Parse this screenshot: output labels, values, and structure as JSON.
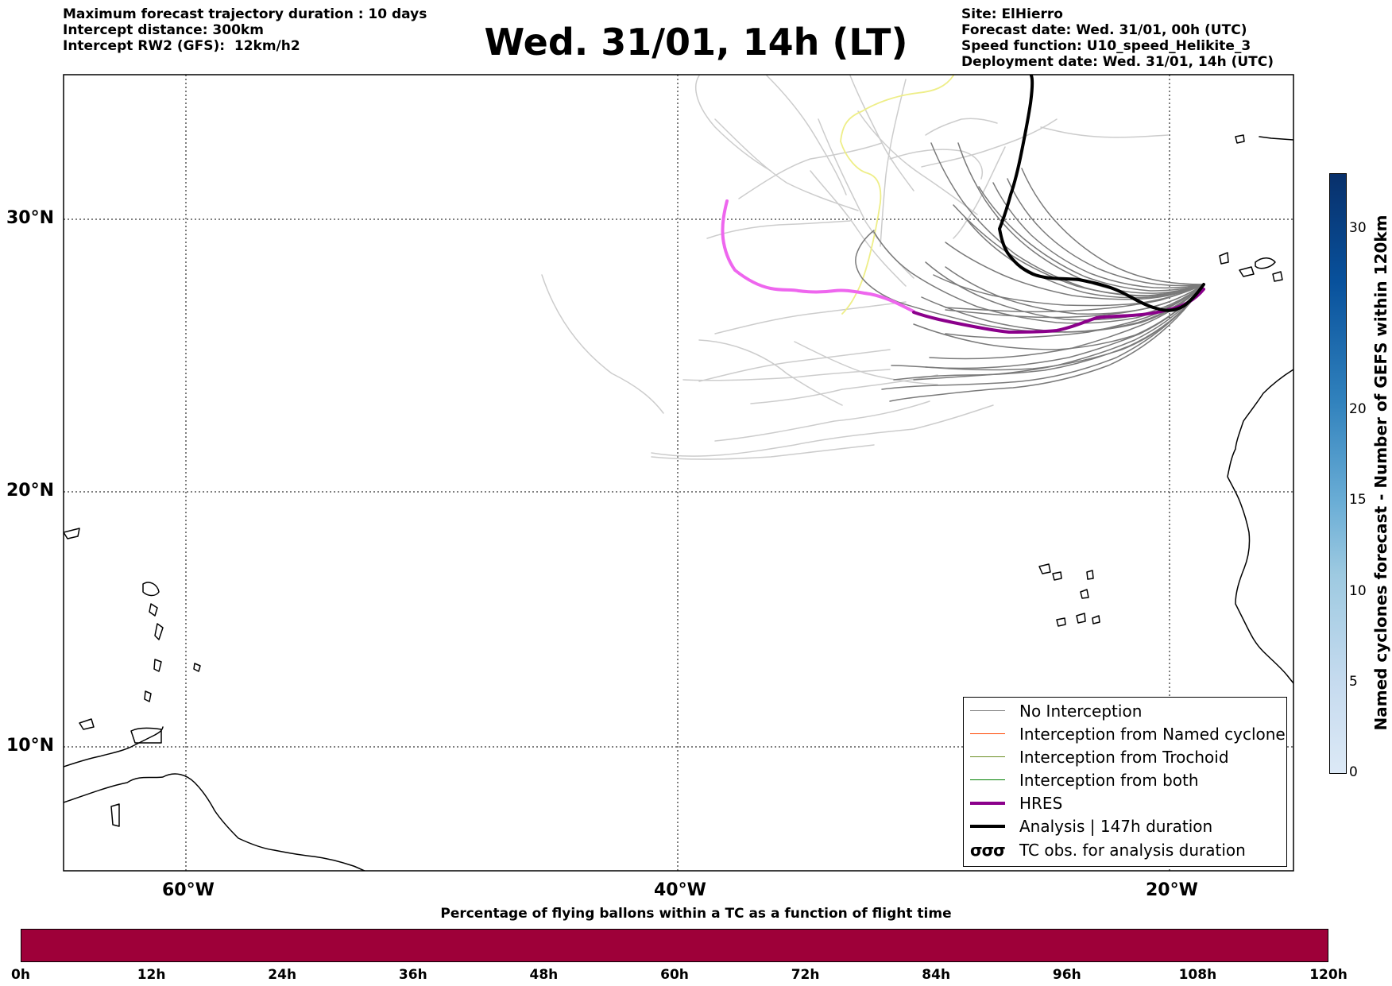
{
  "header": {
    "left": [
      "Maximum forecast trajectory duration : 10 days",
      "Intercept distance: 300km",
      "Intercept RW2 (GFS):  12km/h2"
    ],
    "title": "Wed. 31/01, 14h (LT)",
    "right": [
      "Site: ElHierro",
      "Forecast date: Wed. 31/01, 00h (UTC)",
      "Speed function: U10_speed_Helikite_3",
      "Deployment date: Wed. 31/01, 14h (UTC)"
    ]
  },
  "map": {
    "lat_labels": [
      "30°N",
      "20°N",
      "10°N"
    ],
    "lon_labels": [
      "60°W",
      "40°W",
      "20°W"
    ],
    "extent": {
      "lon": [
        -65,
        -15
      ],
      "lat": [
        4.5,
        34
      ]
    },
    "colors": {
      "no_interception": "#7a7a7a",
      "light_tracks": "#cccccc",
      "yellow_track": "#eeee88",
      "hres": "#8b008b",
      "hres_light": "#ee66ee",
      "analysis": "#000000",
      "coast": "#000000"
    }
  },
  "legend": {
    "items": [
      {
        "label": "No Interception",
        "color": "#7a7a7a",
        "width": 1
      },
      {
        "label": "Interception from Named cyclone",
        "color": "#ff4500",
        "width": 1
      },
      {
        "label": "Interception from Trochoid",
        "color": "#6b8e23",
        "width": 1
      },
      {
        "label": "Interception from both",
        "color": "#008000",
        "width": 1
      },
      {
        "label": "HRES",
        "color": "#8b008b",
        "width": 4
      },
      {
        "label": "Analysis | 147h duration",
        "color": "#000000",
        "width": 4
      },
      {
        "label": "TC obs. for analysis duration",
        "symbol": "σσσ"
      }
    ]
  },
  "bottom_bar": {
    "title": "Percentage of flying ballons within a TC as a function of flight time",
    "ticks": [
      "0h",
      "12h",
      "24h",
      "36h",
      "48h",
      "60h",
      "72h",
      "84h",
      "96h",
      "108h",
      "120h"
    ],
    "color": "#9e0039"
  },
  "colorbar": {
    "label": "Named cyclones forecast - Number of GEFS within 120km",
    "ticks": [
      "0",
      "5",
      "10",
      "15",
      "20",
      "30"
    ],
    "tick_values": [
      0,
      5,
      10,
      15,
      20,
      30
    ],
    "range": [
      0,
      33
    ]
  }
}
